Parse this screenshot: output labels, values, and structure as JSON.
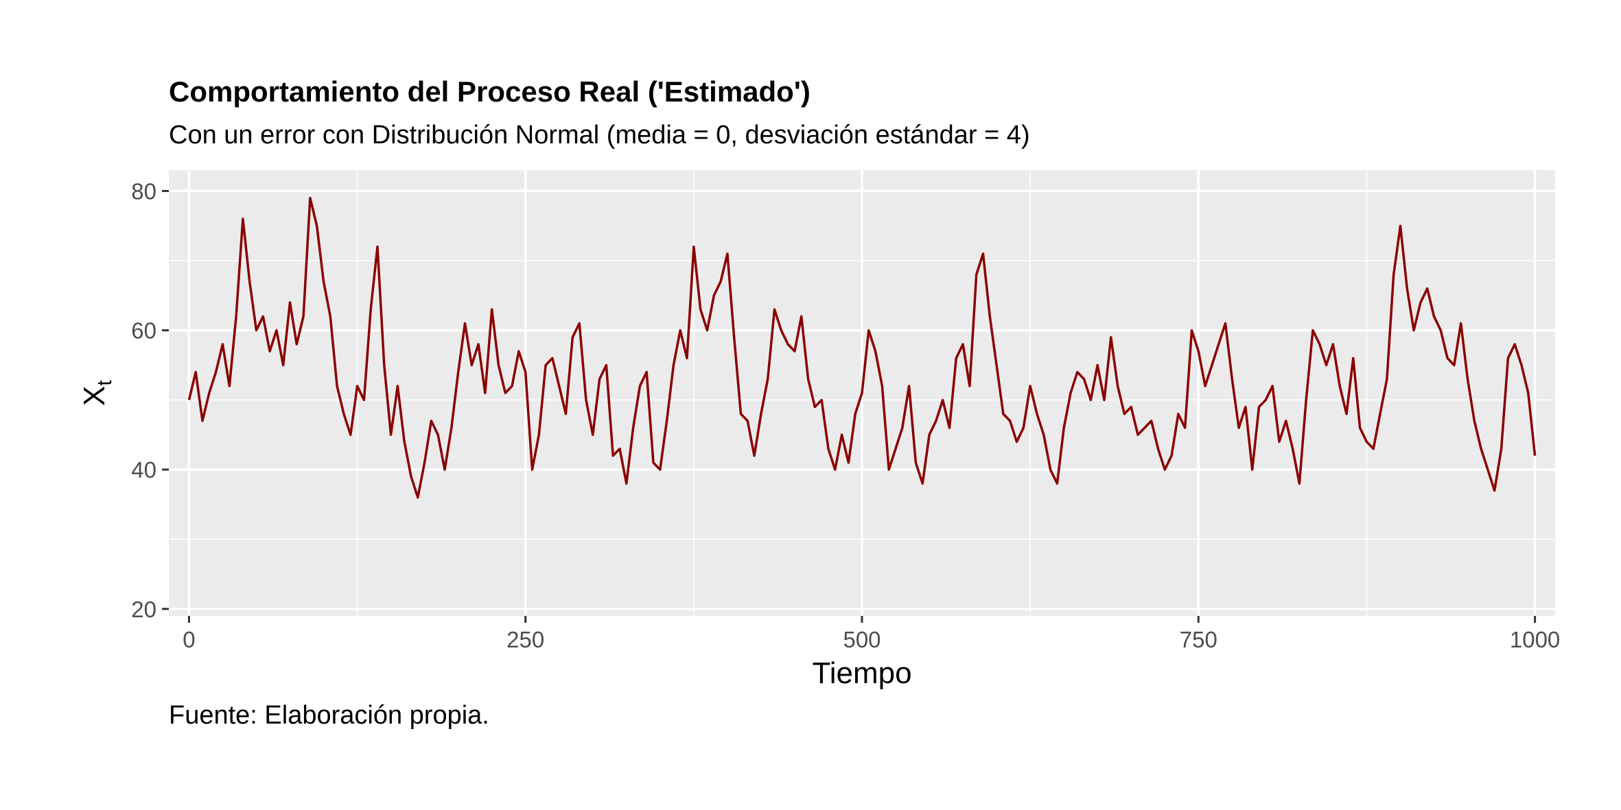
{
  "chart_data": {
    "type": "line",
    "title": "Comportamiento del Proceso Real ('Estimado')",
    "subtitle": "Con un error con Distribución Normal (media = 0, desviación estándar = 4)",
    "caption": "Fuente: Elaboración propia.",
    "xlabel": "Tiempo",
    "ylabel": "X",
    "ylabel_subscript": "t",
    "xlim": [
      -15,
      1015
    ],
    "ylim": [
      19,
      83
    ],
    "x_ticks": [
      0,
      250,
      500,
      750,
      1000
    ],
    "x_tick_labels": [
      "0",
      "250",
      "500",
      "750",
      "1000"
    ],
    "y_ticks": [
      20,
      40,
      60,
      80
    ],
    "y_tick_labels": [
      "20",
      "40",
      "60",
      "80"
    ],
    "grid": true,
    "line_color": "#8B0000",
    "panel_color": "#EBEBEB",
    "series": [
      {
        "x": [
          0,
          5,
          10,
          15,
          20,
          25,
          30,
          35,
          40,
          45,
          50,
          55,
          60,
          65,
          70,
          75,
          80,
          85,
          90,
          95,
          100,
          105,
          110,
          115,
          120,
          125,
          130,
          135,
          140,
          145,
          150,
          155,
          160,
          165,
          170,
          175,
          180,
          185,
          190,
          195,
          200,
          205,
          210,
          215,
          220,
          225,
          230,
          235,
          240,
          245,
          250,
          255,
          260,
          265,
          270,
          275,
          280,
          285,
          290,
          295,
          300,
          305,
          310,
          315,
          320,
          325,
          330,
          335,
          340,
          345,
          350,
          355,
          360,
          365,
          370,
          375,
          380,
          385,
          390,
          395,
          400,
          405,
          410,
          415,
          420,
          425,
          430,
          435,
          440,
          445,
          450,
          455,
          460,
          465,
          470,
          475,
          480,
          485,
          490,
          495,
          500,
          505,
          510,
          515,
          520,
          525,
          530,
          535,
          540,
          545,
          550,
          555,
          560,
          565,
          570,
          575,
          580,
          585,
          590,
          595,
          600,
          605,
          610,
          615,
          620,
          625,
          630,
          635,
          640,
          645,
          650,
          655,
          660,
          665,
          670,
          675,
          680,
          685,
          690,
          695,
          700,
          705,
          710,
          715,
          720,
          725,
          730,
          735,
          740,
          745,
          750,
          755,
          760,
          765,
          770,
          775,
          780,
          785,
          790,
          795,
          800,
          805,
          810,
          815,
          820,
          825,
          830,
          835,
          840,
          845,
          850,
          855,
          860,
          865,
          870,
          875,
          880,
          885,
          890,
          895,
          900,
          905,
          910,
          915,
          920,
          925,
          930,
          935,
          940,
          945,
          950,
          955,
          960,
          965,
          970,
          975,
          980,
          985,
          990,
          995,
          1000
        ],
        "y": [
          50,
          54,
          47,
          51,
          54,
          58,
          52,
          62,
          76,
          67,
          60,
          62,
          57,
          60,
          55,
          64,
          58,
          62,
          79,
          75,
          67,
          62,
          52,
          48,
          45,
          52,
          50,
          63,
          72,
          55,
          45,
          52,
          44,
          39,
          36,
          41,
          47,
          45,
          40,
          46,
          54,
          61,
          55,
          58,
          51,
          63,
          55,
          51,
          52,
          57,
          54,
          40,
          45,
          55,
          56,
          52,
          48,
          59,
          61,
          50,
          45,
          53,
          55,
          42,
          43,
          38,
          46,
          52,
          54,
          41,
          40,
          47,
          55,
          60,
          56,
          72,
          63,
          60,
          65,
          67,
          71,
          59,
          48,
          47,
          42,
          48,
          53,
          63,
          60,
          58,
          57,
          62,
          53,
          49,
          50,
          43,
          40,
          45,
          41,
          48,
          51,
          60,
          57,
          52,
          40,
          43,
          46,
          52,
          41,
          38,
          45,
          47,
          50,
          46,
          56,
          58,
          52,
          68,
          71,
          62,
          55,
          48,
          47,
          44,
          46,
          52,
          48,
          45,
          40,
          38,
          46,
          51,
          54,
          53,
          50,
          55,
          50,
          59,
          52,
          48,
          49,
          45,
          46,
          47,
          43,
          40,
          42,
          48,
          46,
          60,
          57,
          52,
          55,
          58,
          61,
          53,
          46,
          49,
          40,
          49,
          50,
          52,
          44,
          47,
          43,
          38,
          50,
          60,
          58,
          55,
          58,
          52,
          48,
          56,
          46,
          44,
          43,
          48,
          53,
          68,
          75,
          66,
          60,
          64,
          66,
          62,
          60,
          56,
          55,
          61,
          53,
          47,
          43,
          40,
          37,
          43,
          56,
          58,
          55,
          51,
          42
        ]
      }
    ]
  }
}
